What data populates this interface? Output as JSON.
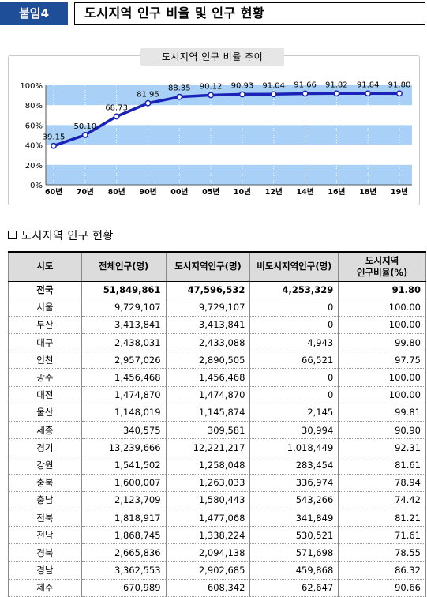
{
  "header": {
    "badge": "붙임4",
    "title": "도시지역 인구 비율 및 인구 현황"
  },
  "chart_data": {
    "type": "line",
    "title": "도시지역 인구 비율 추이",
    "categories": [
      "60년",
      "70년",
      "80년",
      "90년",
      "00년",
      "05년",
      "10년",
      "12년",
      "14년",
      "16년",
      "18년",
      "19년"
    ],
    "values": [
      39.15,
      50.1,
      68.73,
      81.95,
      88.35,
      90.12,
      90.93,
      91.04,
      91.66,
      91.82,
      91.84,
      91.8
    ],
    "value_labels": [
      "39.15",
      "50.10",
      "68.73",
      "81.95",
      "88.35",
      "90.12",
      "90.93",
      "91.04",
      "91.66",
      "91.82",
      "91.84",
      "91.80"
    ],
    "ylim": [
      0,
      100
    ],
    "yticks": [
      "0%",
      "20%",
      "40%",
      "60%",
      "80%",
      "100%"
    ],
    "ytick_values": [
      0,
      20,
      40,
      60,
      80,
      100
    ],
    "xlabel": "",
    "ylabel": "",
    "grid": "alternating bands",
    "colors": {
      "line": "#1a22b8",
      "band": "#a9d1f7",
      "marker_fill": "#ffffff"
    }
  },
  "section": {
    "title": "도시지역 인구 현황"
  },
  "table": {
    "headers": [
      "시도",
      "전체인구(명)",
      "도시지역인구(명)",
      "비도시지역인구(명)",
      "도시지역\n인구비율(%)"
    ],
    "rows": [
      [
        "전국",
        "51,849,861",
        "47,596,532",
        "4,253,329",
        "91.80"
      ],
      [
        "서울",
        "9,729,107",
        "9,729,107",
        "0",
        "100.00"
      ],
      [
        "부산",
        "3,413,841",
        "3,413,841",
        "0",
        "100.00"
      ],
      [
        "대구",
        "2,438,031",
        "2,433,088",
        "4,943",
        "99.80"
      ],
      [
        "인천",
        "2,957,026",
        "2,890,505",
        "66,521",
        "97.75"
      ],
      [
        "광주",
        "1,456,468",
        "1,456,468",
        "0",
        "100.00"
      ],
      [
        "대전",
        "1,474,870",
        "1,474,870",
        "0",
        "100.00"
      ],
      [
        "울산",
        "1,148,019",
        "1,145,874",
        "2,145",
        "99.81"
      ],
      [
        "세종",
        "340,575",
        "309,581",
        "30,994",
        "90.90"
      ],
      [
        "경기",
        "13,239,666",
        "12,221,217",
        "1,018,449",
        "92.31"
      ],
      [
        "강원",
        "1,541,502",
        "1,258,048",
        "283,454",
        "81.61"
      ],
      [
        "충북",
        "1,600,007",
        "1,263,033",
        "336,974",
        "78.94"
      ],
      [
        "충남",
        "2,123,709",
        "1,580,443",
        "543,266",
        "74.42"
      ],
      [
        "전북",
        "1,818,917",
        "1,477,068",
        "341,849",
        "81.21"
      ],
      [
        "전남",
        "1,868,745",
        "1,338,224",
        "530,521",
        "71.61"
      ],
      [
        "경북",
        "2,665,836",
        "2,094,138",
        "571,698",
        "78.55"
      ],
      [
        "경남",
        "3,362,553",
        "2,902,685",
        "459,868",
        "86.32"
      ],
      [
        "제주",
        "670,989",
        "608,342",
        "62,647",
        "90.66"
      ]
    ]
  }
}
